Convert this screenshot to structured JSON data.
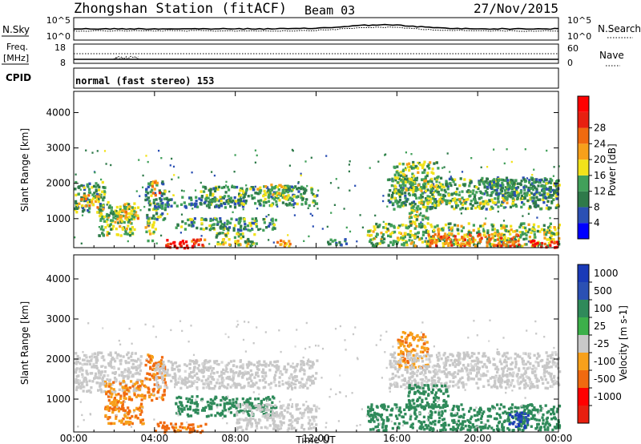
{
  "header": {
    "title": "Zhongshan Station (fitACF)",
    "beam": "Beam 03",
    "date": "27/Nov/2015"
  },
  "noise_panel": {
    "left_label": "N.Sky",
    "left_ticks": [
      "10^5",
      "10^0"
    ],
    "right_label": "N.Search",
    "right_ticks": [
      "10^5",
      "10^0"
    ]
  },
  "freq_panel": {
    "left_label_1": "Freq.",
    "left_label_2": "[MHz]",
    "left_ticks": [
      "18",
      "8"
    ],
    "right_label": "Nave",
    "right_ticks": [
      "60",
      "0"
    ]
  },
  "cpid": {
    "label": "CPID",
    "mode": "normal (fast stereo) 153"
  },
  "colors": {
    "power": [
      "#0000ff",
      "#2b50b4",
      "#2f7a4a",
      "#41a05a",
      "#f2e21b",
      "#f7a01b",
      "#f06a10",
      "#e82010",
      "#ff0000"
    ],
    "velocity": [
      "#ff0000",
      "#f06a10",
      "#f7a01b",
      "#c8c8c8",
      "#c8c8c8",
      "#3cb04a",
      "#2f8a5a",
      "#2b50b4",
      "#1a3ab8"
    ],
    "ground_scatter": "#c8c8c8"
  },
  "chart_data": [
    {
      "type": "heatmap",
      "name": "power",
      "ylabel": "Slant Range [km]",
      "yticks": [
        1000,
        2000,
        3000,
        4000
      ],
      "ylim": [
        180,
        4600
      ],
      "xlim": [
        0,
        24
      ],
      "colorbar_label": "Power [dB]",
      "colorbar_ticks": [
        "4",
        "8",
        "12",
        "16",
        "20",
        "24",
        "28"
      ],
      "colorbar_range": [
        0,
        32
      ],
      "echo_bands": [
        {
          "t": [
            0.0,
            1.5
          ],
          "r": [
            1200,
            2100
          ],
          "p": 11
        },
        {
          "t": [
            0.2,
            1.2
          ],
          "r": [
            1350,
            1700
          ],
          "p": 18
        },
        {
          "t": [
            1.2,
            3.0
          ],
          "r": [
            550,
            1500
          ],
          "p": 14
        },
        {
          "t": [
            2.0,
            3.2
          ],
          "r": [
            900,
            1400
          ],
          "p": 17
        },
        {
          "t": [
            3.5,
            4.5
          ],
          "r": [
            1000,
            2100
          ],
          "p": 10
        },
        {
          "t": [
            3.8,
            4.2
          ],
          "r": [
            1700,
            2100
          ],
          "p": 22
        },
        {
          "t": [
            3.5,
            4.0
          ],
          "r": [
            400,
            1000
          ],
          "p": 15
        },
        {
          "t": [
            4.0,
            8.5
          ],
          "r": [
            1350,
            1650
          ],
          "p": 9
        },
        {
          "t": [
            4.5,
            6.0
          ],
          "r": [
            200,
            430
          ],
          "p": 28
        },
        {
          "t": [
            5.5,
            6.5
          ],
          "r": [
            250,
            450
          ],
          "p": 24
        },
        {
          "t": [
            6.2,
            12.0
          ],
          "r": [
            1400,
            1950
          ],
          "p": 11
        },
        {
          "t": [
            9.0,
            10.6
          ],
          "r": [
            1550,
            2000
          ],
          "p": 15
        },
        {
          "t": [
            5.0,
            10.0
          ],
          "r": [
            700,
            1050
          ],
          "p": 11
        },
        {
          "t": [
            7.0,
            9.0
          ],
          "r": [
            250,
            650
          ],
          "p": 14
        },
        {
          "t": [
            10.0,
            11.0
          ],
          "r": [
            250,
            420
          ],
          "p": 20
        },
        {
          "t": [
            12.5,
            13.5
          ],
          "r": [
            250,
            450
          ],
          "p": 9
        },
        {
          "t": [
            14.5,
            24.0
          ],
          "r": [
            250,
            900
          ],
          "p": 14
        },
        {
          "t": [
            17.5,
            22.0
          ],
          "r": [
            250,
            600
          ],
          "p": 22
        },
        {
          "t": [
            22.5,
            24.0
          ],
          "r": [
            220,
            420
          ],
          "p": 27
        },
        {
          "t": [
            15.5,
            24.0
          ],
          "r": [
            1300,
            2200
          ],
          "p": 11
        },
        {
          "t": [
            17.0,
            22.0
          ],
          "r": [
            1450,
            1600
          ],
          "p": 16
        },
        {
          "t": [
            15.8,
            18.0
          ],
          "r": [
            1800,
            2650
          ],
          "p": 14
        },
        {
          "t": [
            16.5,
            17.5
          ],
          "r": [
            800,
            1400
          ],
          "p": 15
        },
        {
          "t": [
            20.0,
            24.0
          ],
          "r": [
            1600,
            2150
          ],
          "p": 9
        }
      ]
    },
    {
      "type": "heatmap",
      "name": "velocity",
      "ylabel": "Slant Range [km]",
      "yticks": [
        1000,
        2000,
        3000,
        4000
      ],
      "ylim": [
        180,
        4600
      ],
      "xlim": [
        0,
        24
      ],
      "xticks": [
        "00:00",
        "04:00",
        "08:00",
        "12:00",
        "16:00",
        "20:00",
        "00:00"
      ],
      "xlabel": "Time UT",
      "colorbar_label": "Velocity [m s-1]",
      "colorbar_ticks": [
        "1000",
        "500",
        "100",
        "25",
        "-25",
        "-100",
        "-500",
        "-1000"
      ],
      "echo_bands": [
        {
          "t": [
            0.0,
            3.3
          ],
          "r": [
            1200,
            2200
          ],
          "v": "gs"
        },
        {
          "t": [
            1.5,
            3.5
          ],
          "r": [
            400,
            1500
          ],
          "v": -300
        },
        {
          "t": [
            3.5,
            4.5
          ],
          "r": [
            1000,
            2150
          ],
          "v": -350
        },
        {
          "t": [
            4.0,
            6.5
          ],
          "r": [
            200,
            450
          ],
          "v": -400
        },
        {
          "t": [
            4.0,
            12.0
          ],
          "r": [
            1300,
            2000
          ],
          "v": "gs"
        },
        {
          "t": [
            5.0,
            10.0
          ],
          "r": [
            600,
            1100
          ],
          "v": 150
        },
        {
          "t": [
            8.0,
            12.0
          ],
          "r": [
            250,
            900
          ],
          "v": "gs"
        },
        {
          "t": [
            14.5,
            24.0
          ],
          "r": [
            250,
            900
          ],
          "v": 120
        },
        {
          "t": [
            16.0,
            17.5
          ],
          "r": [
            1800,
            2700
          ],
          "v": -250
        },
        {
          "t": [
            15.5,
            24.0
          ],
          "r": [
            1300,
            2200
          ],
          "v": "gs"
        },
        {
          "t": [
            21.5,
            22.5
          ],
          "r": [
            300,
            700
          ],
          "v": 900
        },
        {
          "t": [
            16.5,
            18.5
          ],
          "r": [
            800,
            1400
          ],
          "v": 150
        }
      ]
    }
  ]
}
